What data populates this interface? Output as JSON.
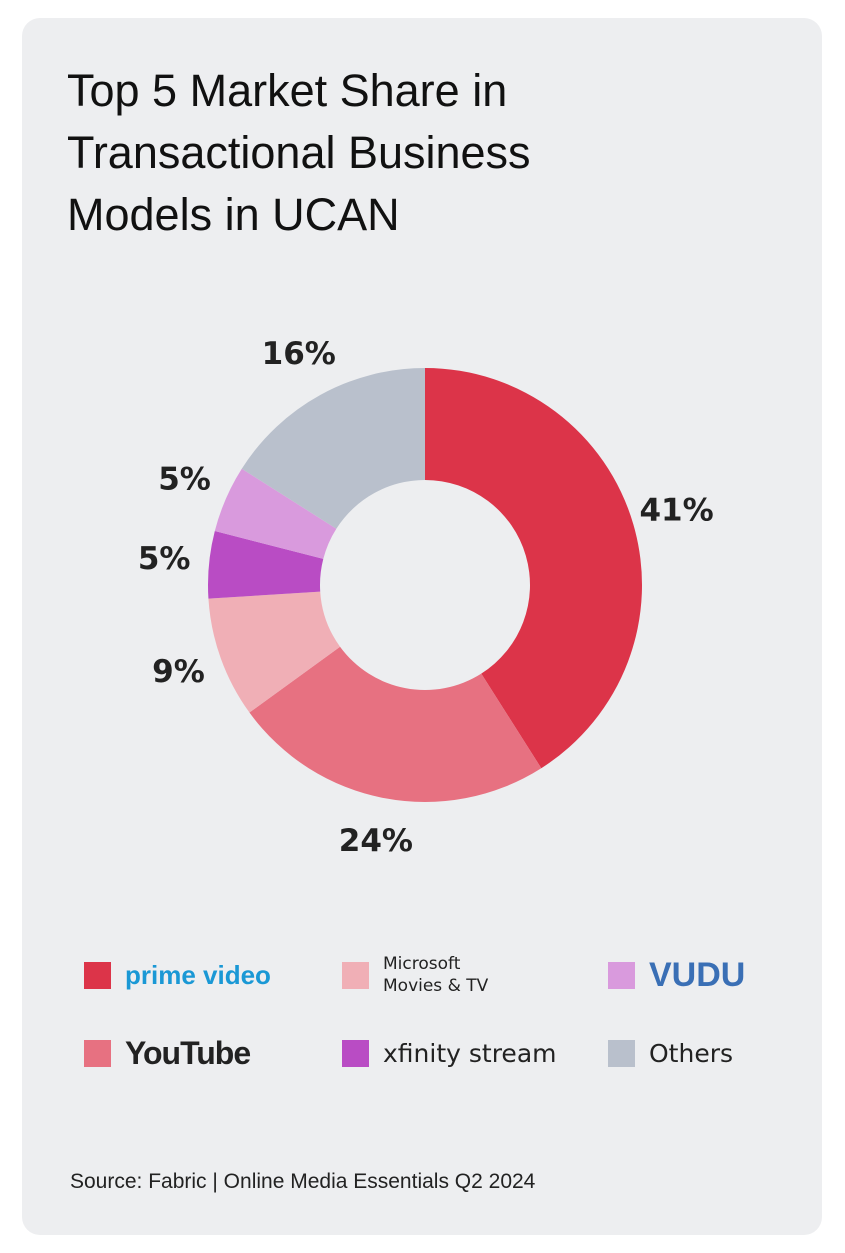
{
  "chart_data": {
    "type": "donut",
    "title": "Top 5 Market Share in Transactional Business Models in UCAN",
    "categories": [
      "prime video",
      "YouTube",
      "Microsoft Movies & TV",
      "xfinity stream",
      "VUDU",
      "Others"
    ],
    "values": [
      41,
      24,
      9,
      5,
      5,
      16
    ],
    "value_labels": [
      "41%",
      "24%",
      "9%",
      "5%",
      "5%",
      "16%"
    ],
    "colors": [
      "#dc3449",
      "#e77181",
      "#f0afb6",
      "#b94cc4",
      "#d99add",
      "#b9c0cc"
    ],
    "source": "Source: Fabric | Online Media Essentials Q2 2024"
  }
}
